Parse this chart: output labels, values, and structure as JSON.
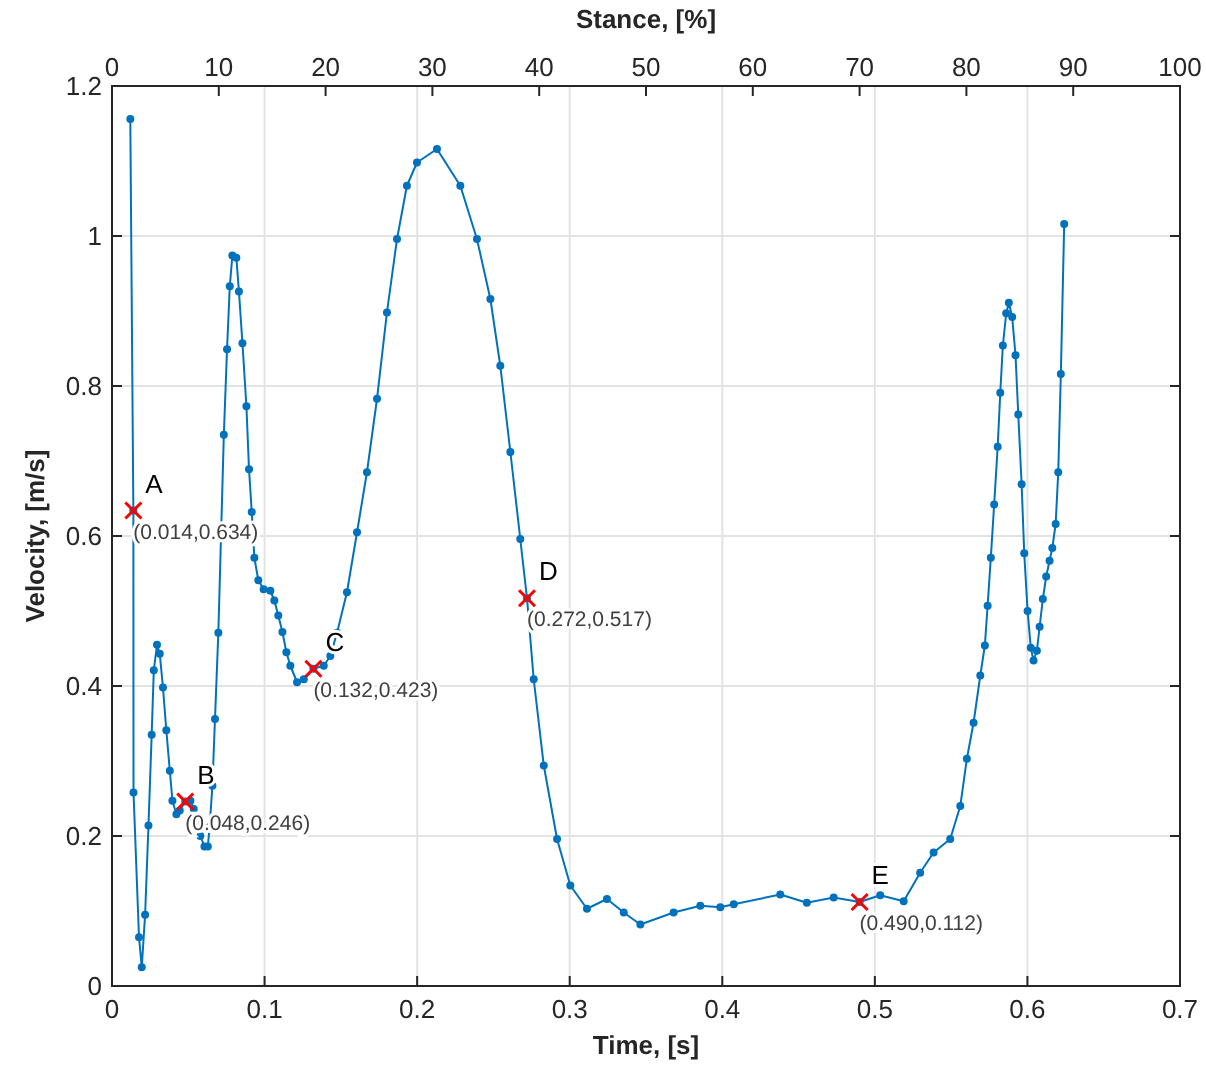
{
  "chart_data": {
    "type": "line",
    "xlabel": "Time, [s]",
    "ylabel": "Velocity, [m/s]",
    "x2label": "Stance, [%]",
    "xlim": [
      0,
      0.7
    ],
    "xticks": [
      0,
      0.1,
      0.2,
      0.3,
      0.4,
      0.5,
      0.6,
      0.7
    ],
    "ylim": [
      0,
      1.2
    ],
    "yticks": [
      0,
      0.2,
      0.4,
      0.6,
      0.8,
      1,
      1.2
    ],
    "x2lim": [
      0,
      100
    ],
    "x2ticks": [
      0,
      10,
      20,
      30,
      40,
      50,
      60,
      70,
      80,
      90,
      100
    ],
    "grid": true,
    "series": [
      {
        "color": "#0072bd",
        "marker": "circle",
        "line_style": "solid",
        "x": [
          0.012,
          0.014,
          0.0141,
          0.0177,
          0.0195,
          0.0217,
          0.0239,
          0.026,
          0.0274,
          0.0295,
          0.0313,
          0.0334,
          0.0356,
          0.0379,
          0.0396,
          0.0422,
          0.0444,
          0.048,
          0.0514,
          0.0536,
          0.0557,
          0.0579,
          0.0606,
          0.0628,
          0.064,
          0.0658,
          0.0675,
          0.0697,
          0.0733,
          0.0754,
          0.0772,
          0.0789,
          0.0815,
          0.0832,
          0.0855,
          0.0881,
          0.0898,
          0.0916,
          0.0933,
          0.0959,
          0.0994,
          0.1038,
          0.1064,
          0.109,
          0.1117,
          0.1143,
          0.1169,
          0.1213,
          0.1257,
          0.132,
          0.1388,
          0.1431,
          0.1475,
          0.154,
          0.1606,
          0.1671,
          0.1737,
          0.1802,
          0.1868,
          0.1933,
          0.1999,
          0.213,
          0.2283,
          0.2392,
          0.248,
          0.2545,
          0.2611,
          0.2676,
          0.272,
          0.2764,
          0.283,
          0.2917,
          0.3004,
          0.3113,
          0.3244,
          0.3354,
          0.3463,
          0.3681,
          0.3856,
          0.3987,
          0.4075,
          0.438,
          0.4554,
          0.473,
          0.49,
          0.5035,
          0.5189,
          0.5297,
          0.5385,
          0.5494,
          0.556,
          0.5603,
          0.5647,
          0.5691,
          0.5721,
          0.5739,
          0.576,
          0.5782,
          0.5805,
          0.5822,
          0.5839,
          0.5861,
          0.5878,
          0.59,
          0.5922,
          0.594,
          0.5962,
          0.5979,
          0.6001,
          0.6022,
          0.604,
          0.6062,
          0.608,
          0.6101,
          0.6123,
          0.6145,
          0.6163,
          0.6185,
          0.6202,
          0.6219,
          0.6241
        ],
        "values": [
          1.156,
          0.634,
          0.258,
          0.065,
          0.025,
          0.095,
          0.214,
          0.335,
          0.421,
          0.455,
          0.443,
          0.398,
          0.341,
          0.287,
          0.247,
          0.229,
          0.234,
          0.246,
          0.247,
          0.236,
          0.214,
          0.2,
          0.186,
          0.186,
          0.212,
          0.267,
          0.356,
          0.471,
          0.735,
          0.849,
          0.933,
          0.974,
          0.971,
          0.926,
          0.857,
          0.773,
          0.689,
          0.632,
          0.571,
          0.541,
          0.529,
          0.527,
          0.514,
          0.494,
          0.472,
          0.445,
          0.427,
          0.405,
          0.409,
          0.423,
          0.427,
          0.44,
          0.471,
          0.525,
          0.605,
          0.685,
          0.783,
          0.898,
          0.996,
          1.067,
          1.098,
          1.116,
          1.067,
          0.996,
          0.916,
          0.827,
          0.712,
          0.596,
          0.517,
          0.409,
          0.294,
          0.196,
          0.134,
          0.103,
          0.116,
          0.098,
          0.082,
          0.098,
          0.107,
          0.105,
          0.109,
          0.122,
          0.111,
          0.118,
          0.112,
          0.121,
          0.113,
          0.151,
          0.178,
          0.196,
          0.24,
          0.303,
          0.351,
          0.414,
          0.454,
          0.507,
          0.571,
          0.642,
          0.719,
          0.791,
          0.854,
          0.897,
          0.911,
          0.892,
          0.841,
          0.762,
          0.669,
          0.577,
          0.5,
          0.451,
          0.434,
          0.447,
          0.479,
          0.516,
          0.546,
          0.567,
          0.584,
          0.616,
          0.685,
          0.816,
          1.016
        ]
      },
      {
        "type": "scatter",
        "color": "#ff0000",
        "marker": "cross",
        "x": [
          0.014,
          0.048,
          0.132,
          0.272,
          0.49
        ],
        "values": [
          0.634,
          0.246,
          0.423,
          0.517,
          0.112
        ]
      }
    ],
    "annotations": [
      {
        "text": "A",
        "x": 0.014,
        "y": 0.634
      },
      {
        "text": "(0.014,0.634)",
        "x": 0.014,
        "y": 0.634
      },
      {
        "text": "B",
        "x": 0.048,
        "y": 0.246
      },
      {
        "text": "(0.048,0.246)",
        "x": 0.048,
        "y": 0.246
      },
      {
        "text": "C",
        "x": 0.132,
        "y": 0.423
      },
      {
        "text": "(0.132,0.423)",
        "x": 0.132,
        "y": 0.423
      },
      {
        "text": "D",
        "x": 0.272,
        "y": 0.517
      },
      {
        "text": "(0.272,0.517)",
        "x": 0.272,
        "y": 0.517
      },
      {
        "text": "E",
        "x": 0.49,
        "y": 0.112
      },
      {
        "text": "(0.490,0.112)",
        "x": 0.49,
        "y": 0.112
      }
    ]
  }
}
